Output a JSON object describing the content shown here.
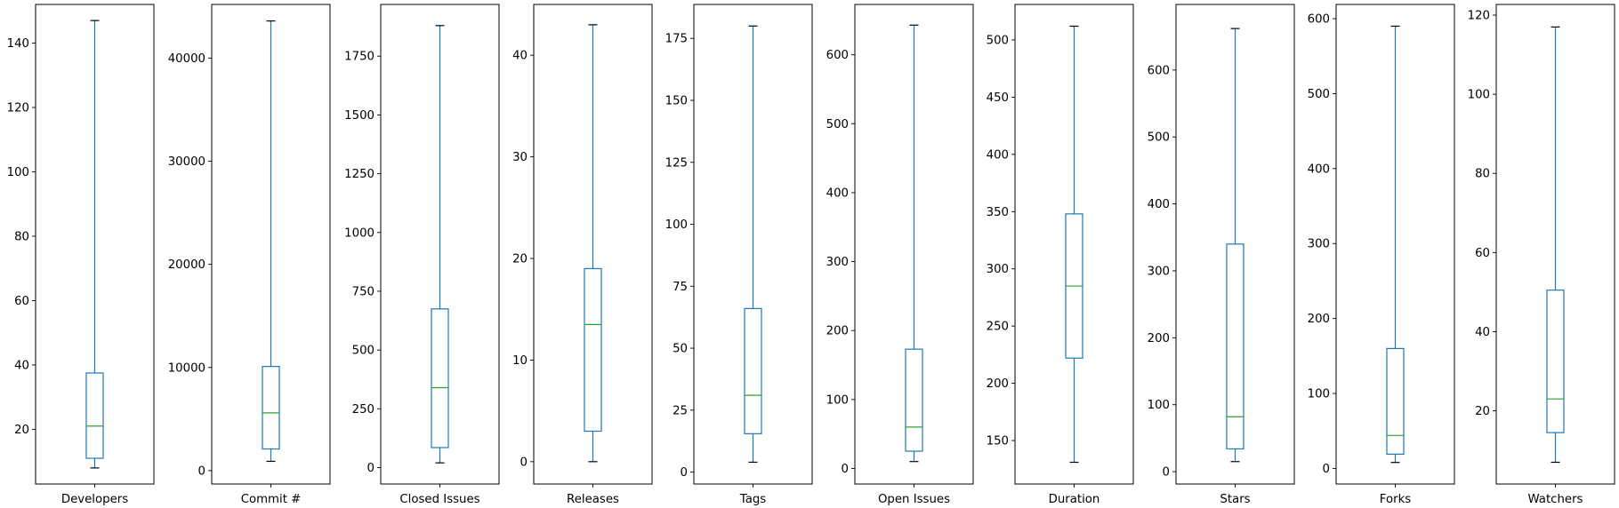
{
  "chart_data": [
    {
      "type": "box",
      "categories": [
        "Developers"
      ],
      "ylim": [
        3,
        152
      ],
      "yticks": [
        20,
        40,
        60,
        80,
        100,
        120,
        140
      ],
      "box": {
        "whisker_low": 8,
        "q1": 11,
        "median": 21,
        "q3": 37.5,
        "whisker_high": 147
      }
    },
    {
      "type": "box",
      "categories": [
        "Commit #"
      ],
      "ylim": [
        -1300,
        45200
      ],
      "yticks": [
        0,
        10000,
        20000,
        30000,
        40000
      ],
      "box": {
        "whisker_low": 900,
        "q1": 2100,
        "median": 5600,
        "q3": 10100,
        "whisker_high": 43600
      }
    },
    {
      "type": "box",
      "categories": [
        "Closed Issues"
      ],
      "ylim": [
        -70,
        1970
      ],
      "yticks": [
        0,
        250,
        500,
        750,
        1000,
        1250,
        1500,
        1750
      ],
      "box": {
        "whisker_low": 20,
        "q1": 85,
        "median": 340,
        "q3": 675,
        "whisker_high": 1880
      }
    },
    {
      "type": "box",
      "categories": [
        "Releases"
      ],
      "ylim": [
        -2.2,
        45
      ],
      "yticks": [
        0,
        10,
        20,
        30,
        40
      ],
      "box": {
        "whisker_low": 0,
        "q1": 3,
        "median": 13.5,
        "q3": 19,
        "whisker_high": 43
      }
    },
    {
      "type": "box",
      "categories": [
        "Tags"
      ],
      "ylim": [
        -4.8,
        188.7
      ],
      "yticks": [
        0,
        25,
        50,
        75,
        100,
        125,
        150,
        175
      ],
      "box": {
        "whisker_low": 4,
        "q1": 15.5,
        "median": 31,
        "q3": 66,
        "whisker_high": 180
      }
    },
    {
      "type": "box",
      "categories": [
        "Open Issues"
      ],
      "ylim": [
        -22.6,
        673
      ],
      "yticks": [
        0,
        100,
        200,
        300,
        400,
        500,
        600
      ],
      "box": {
        "whisker_low": 10,
        "q1": 25,
        "median": 60,
        "q3": 173,
        "whisker_high": 643
      }
    },
    {
      "type": "box",
      "categories": [
        "Duration"
      ],
      "ylim": [
        112,
        531
      ],
      "yticks": [
        150,
        200,
        250,
        300,
        350,
        400,
        450,
        500
      ],
      "box": {
        "whisker_low": 131,
        "q1": 222,
        "median": 285,
        "q3": 348,
        "whisker_high": 512
      }
    },
    {
      "type": "box",
      "categories": [
        "Stars"
      ],
      "ylim": [
        -18.5,
        698
      ],
      "yticks": [
        0,
        100,
        200,
        300,
        400,
        500,
        600
      ],
      "box": {
        "whisker_low": 15,
        "q1": 34,
        "median": 82,
        "q3": 340,
        "whisker_high": 662
      }
    },
    {
      "type": "box",
      "categories": [
        "Forks"
      ],
      "ylim": [
        -20.8,
        619
      ],
      "yticks": [
        0,
        100,
        200,
        300,
        400,
        500,
        600
      ],
      "box": {
        "whisker_low": 8,
        "q1": 19,
        "median": 44,
        "q3": 160,
        "whisker_high": 590
      }
    },
    {
      "type": "box",
      "categories": [
        "Watchers"
      ],
      "ylim": [
        1.5,
        122.7
      ],
      "yticks": [
        20,
        40,
        60,
        80,
        100,
        120
      ],
      "box": {
        "whisker_low": 7,
        "q1": 14.5,
        "median": 23,
        "q3": 50.5,
        "whisker_high": 117
      }
    }
  ],
  "colors": {
    "box": "#1f77b4",
    "median": "#2ca02c",
    "axes": "#000000"
  }
}
